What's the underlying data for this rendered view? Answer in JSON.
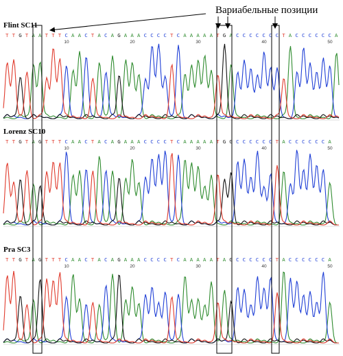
{
  "annotation": "Вариабельные позиции",
  "colors": {
    "A": "#2e8b2e",
    "C": "#1f3fd6",
    "G": "#111111",
    "T": "#e03a2c"
  },
  "tick_labels": [
    "10",
    "20",
    "30",
    "40",
    "50"
  ],
  "panels": [
    {
      "name": "Flint SC11",
      "sequence": "TTGTAATTTCAACTACAGAAACCCCTCAAAAATGACCCCCCCTACCCCCCA"
    },
    {
      "name": "Lorenz SC10",
      "sequence": "TTGTAGTTTCAACTACAGAAACCCCTCAAAAATGGCCCCCCTACCCCCCA"
    },
    {
      "name": "Pra SC3",
      "sequence": "TTGTAGTTTCAACTACAGAAACCCCTCAAAAATAGCCCCCCTACCCCCCA"
    }
  ]
}
